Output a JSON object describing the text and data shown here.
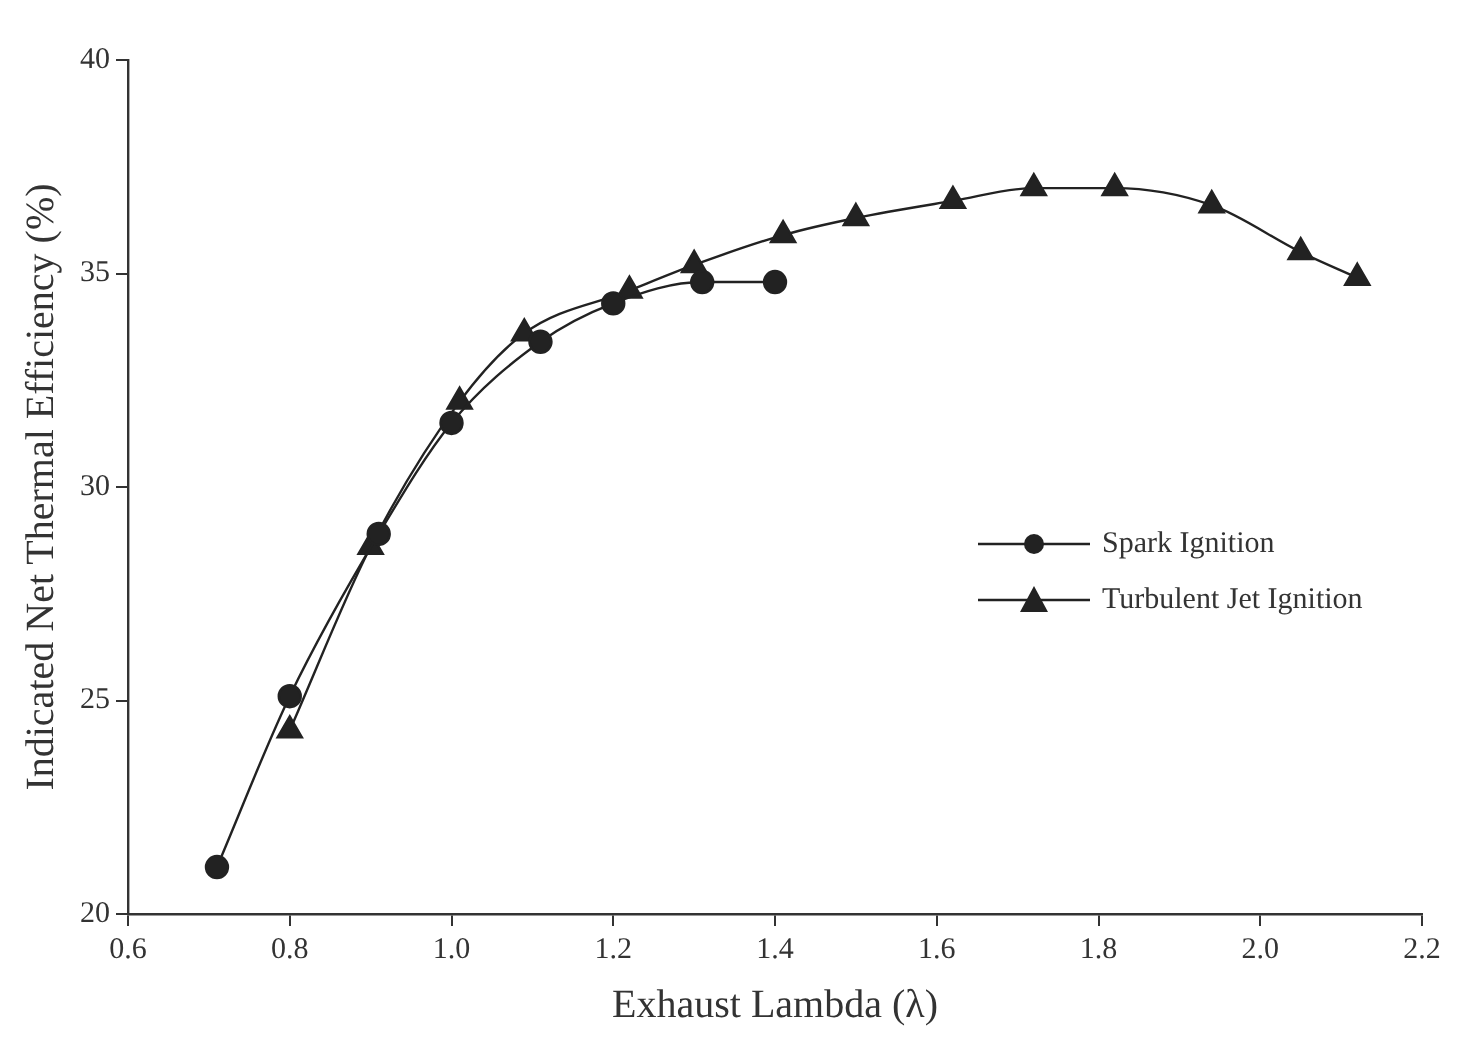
{
  "chart_data": {
    "type": "line",
    "xlabel": "Exhaust Lambda (λ)",
    "ylabel": "Indicated Net Thermal Efficiency (%)",
    "series": [
      {
        "name": "Spark Ignition",
        "color": "#222222",
        "marker": "circle",
        "x": [
          0.71,
          0.8,
          0.91,
          1.0,
          1.11,
          1.2,
          1.31,
          1.4
        ],
        "values": [
          21.1,
          25.1,
          28.9,
          31.5,
          33.4,
          34.3,
          34.8,
          34.8
        ]
      },
      {
        "name": "Turbulent Jet Ignition",
        "color": "#222222",
        "marker": "triangle",
        "x": [
          0.8,
          0.9,
          1.01,
          1.09,
          1.22,
          1.3,
          1.41,
          1.5,
          1.62,
          1.72,
          1.82,
          1.94,
          2.05,
          2.12
        ],
        "values": [
          24.3,
          28.6,
          32.0,
          33.6,
          34.6,
          35.2,
          35.9,
          36.3,
          36.7,
          37.0,
          37.0,
          36.6,
          35.5,
          34.9
        ]
      }
    ],
    "xlim": [
      0.6,
      2.2
    ],
    "xticks": [
      0.6,
      0.8,
      {
        "value": 1.0,
        "label": "1.0"
      },
      1.2,
      1.4,
      1.6,
      1.8,
      {
        "value": 2.0,
        "label": "2.0"
      },
      2.2
    ],
    "ylim": [
      20,
      40
    ],
    "yticks": [
      20,
      25,
      30,
      35,
      40
    ],
    "grid": false,
    "legend": "right",
    "line_style": "solid"
  }
}
